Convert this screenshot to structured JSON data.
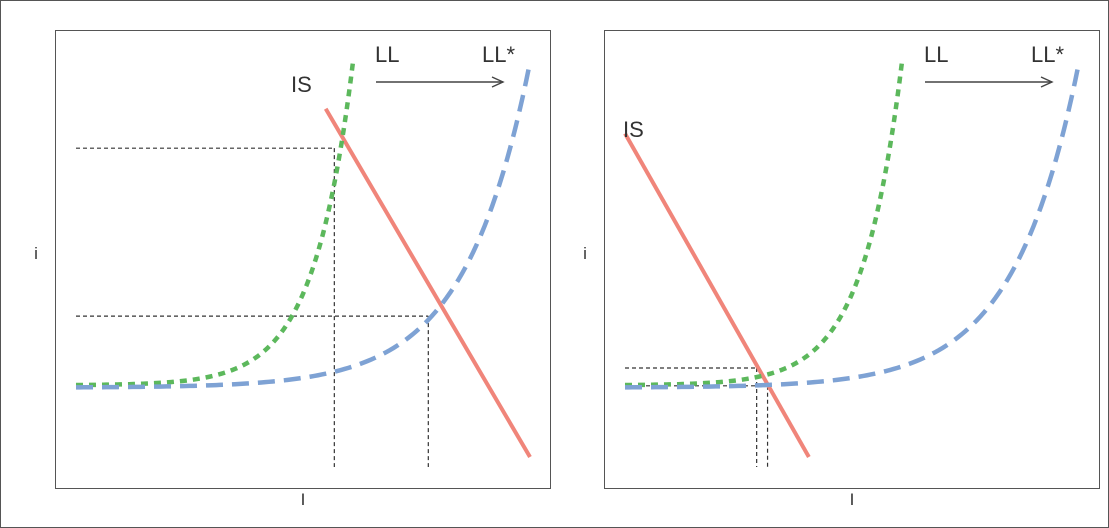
{
  "chart_data": [
    {
      "type": "line",
      "title": "",
      "xlabel": "I",
      "ylabel": "i",
      "axis_ticks": "none",
      "grid": false,
      "colors": {
        "IS": "#f0857a",
        "LL": "#5cb85c",
        "LL*": "#7ea2d4",
        "guides": "#333333",
        "arrow": "#444444"
      },
      "series": [
        {
          "name": "IS",
          "style": "solid",
          "points": [
            [
              0.55,
              0.9
            ],
            [
              1.0,
              0.0
            ]
          ]
        },
        {
          "name": "LL",
          "style": "dotted",
          "shape": "exponential",
          "start": [
            0.0,
            0.186
          ],
          "end": [
            0.61,
            1.02
          ]
        },
        {
          "name": "LL*",
          "style": "dashed",
          "shape": "exponential",
          "start": [
            0.0,
            0.18
          ],
          "end": [
            1.0,
            1.02
          ]
        }
      ],
      "intersections": [
        [
          0.569,
          0.798
        ],
        [
          0.776,
          0.364
        ]
      ],
      "annotations": [
        {
          "text": "IS"
        },
        {
          "text": "LL"
        },
        {
          "text": "LL*"
        },
        {
          "type": "arrow",
          "from": "LL",
          "to": "LL*"
        }
      ]
    },
    {
      "type": "line",
      "title": "",
      "xlabel": "I",
      "ylabel": "i",
      "axis_ticks": "none",
      "grid": false,
      "colors": {
        "IS": "#f0857a",
        "LL": "#5cb85c",
        "LL*": "#7ea2d4",
        "guides": "#333333",
        "arrow": "#444444"
      },
      "series": [
        {
          "name": "IS",
          "style": "solid",
          "points": [
            [
              0.0,
              0.836
            ],
            [
              0.405,
              0.0
            ]
          ]
        },
        {
          "name": "LL",
          "style": "dotted",
          "shape": "exponential",
          "start": [
            0.0,
            0.186
          ],
          "end": [
            0.61,
            1.02
          ]
        },
        {
          "name": "LL*",
          "style": "dashed",
          "shape": "exponential",
          "start": [
            0.0,
            0.18
          ],
          "end": [
            1.0,
            1.02
          ]
        }
      ],
      "intersections": [
        [
          0.29,
          0.23
        ],
        [
          0.314,
          0.184
        ]
      ],
      "annotations": [
        {
          "text": "IS"
        },
        {
          "text": "LL"
        },
        {
          "text": "LL*"
        },
        {
          "type": "arrow",
          "from": "LL",
          "to": "LL*"
        }
      ]
    }
  ]
}
